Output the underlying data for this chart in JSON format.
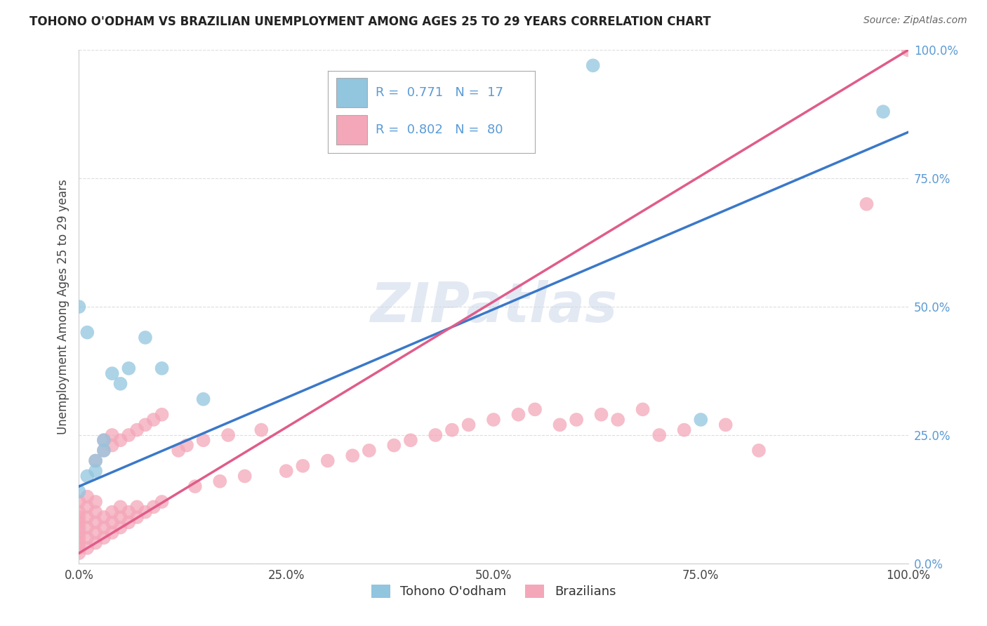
{
  "title": "TOHONO O'ODHAM VS BRAZILIAN UNEMPLOYMENT AMONG AGES 25 TO 29 YEARS CORRELATION CHART",
  "source": "Source: ZipAtlas.com",
  "ylabel": "Unemployment Among Ages 25 to 29 years",
  "watermark": "ZIPatlas",
  "legend_r1": "R =  0.771",
  "legend_n1": "N =  17",
  "legend_r2": "R =  0.802",
  "legend_n2": "N =  80",
  "blue_color": "#92c5de",
  "pink_color": "#f4a7b9",
  "blue_line_color": "#3a78c9",
  "pink_line_color": "#e05c8a",
  "blue_line_x0": 0.0,
  "blue_line_y0": 0.15,
  "blue_line_x1": 1.0,
  "blue_line_y1": 0.84,
  "pink_line_x0": 0.0,
  "pink_line_y0": 0.02,
  "pink_line_x1": 1.0,
  "pink_line_y1": 1.0,
  "blue_scatter": [
    [
      0.0,
      0.14
    ],
    [
      0.0,
      0.5
    ],
    [
      0.01,
      0.17
    ],
    [
      0.01,
      0.45
    ],
    [
      0.02,
      0.18
    ],
    [
      0.02,
      0.2
    ],
    [
      0.03,
      0.22
    ],
    [
      0.03,
      0.24
    ],
    [
      0.04,
      0.37
    ],
    [
      0.05,
      0.35
    ],
    [
      0.06,
      0.38
    ],
    [
      0.08,
      0.44
    ],
    [
      0.1,
      0.38
    ],
    [
      0.15,
      0.32
    ],
    [
      0.75,
      0.28
    ],
    [
      0.97,
      0.88
    ],
    [
      0.62,
      0.97
    ]
  ],
  "pink_scatter": [
    [
      0.0,
      0.02
    ],
    [
      0.0,
      0.03
    ],
    [
      0.0,
      0.04
    ],
    [
      0.0,
      0.05
    ],
    [
      0.0,
      0.06
    ],
    [
      0.0,
      0.07
    ],
    [
      0.0,
      0.08
    ],
    [
      0.0,
      0.09
    ],
    [
      0.0,
      0.1
    ],
    [
      0.0,
      0.12
    ],
    [
      0.01,
      0.03
    ],
    [
      0.01,
      0.05
    ],
    [
      0.01,
      0.07
    ],
    [
      0.01,
      0.09
    ],
    [
      0.01,
      0.11
    ],
    [
      0.01,
      0.13
    ],
    [
      0.02,
      0.04
    ],
    [
      0.02,
      0.06
    ],
    [
      0.02,
      0.08
    ],
    [
      0.02,
      0.1
    ],
    [
      0.02,
      0.12
    ],
    [
      0.02,
      0.2
    ],
    [
      0.03,
      0.05
    ],
    [
      0.03,
      0.07
    ],
    [
      0.03,
      0.09
    ],
    [
      0.03,
      0.22
    ],
    [
      0.03,
      0.24
    ],
    [
      0.04,
      0.06
    ],
    [
      0.04,
      0.08
    ],
    [
      0.04,
      0.1
    ],
    [
      0.04,
      0.23
    ],
    [
      0.04,
      0.25
    ],
    [
      0.05,
      0.07
    ],
    [
      0.05,
      0.09
    ],
    [
      0.05,
      0.11
    ],
    [
      0.05,
      0.24
    ],
    [
      0.06,
      0.08
    ],
    [
      0.06,
      0.1
    ],
    [
      0.06,
      0.25
    ],
    [
      0.07,
      0.09
    ],
    [
      0.07,
      0.11
    ],
    [
      0.07,
      0.26
    ],
    [
      0.08,
      0.1
    ],
    [
      0.08,
      0.27
    ],
    [
      0.09,
      0.11
    ],
    [
      0.09,
      0.28
    ],
    [
      0.1,
      0.12
    ],
    [
      0.1,
      0.29
    ],
    [
      0.12,
      0.22
    ],
    [
      0.13,
      0.23
    ],
    [
      0.14,
      0.15
    ],
    [
      0.15,
      0.24
    ],
    [
      0.17,
      0.16
    ],
    [
      0.18,
      0.25
    ],
    [
      0.2,
      0.17
    ],
    [
      0.22,
      0.26
    ],
    [
      0.25,
      0.18
    ],
    [
      0.27,
      0.19
    ],
    [
      0.3,
      0.2
    ],
    [
      0.33,
      0.21
    ],
    [
      0.35,
      0.22
    ],
    [
      0.38,
      0.23
    ],
    [
      0.4,
      0.24
    ],
    [
      0.43,
      0.25
    ],
    [
      0.45,
      0.26
    ],
    [
      0.47,
      0.27
    ],
    [
      0.5,
      0.28
    ],
    [
      0.53,
      0.29
    ],
    [
      0.55,
      0.3
    ],
    [
      0.58,
      0.27
    ],
    [
      0.6,
      0.28
    ],
    [
      0.63,
      0.29
    ],
    [
      0.65,
      0.28
    ],
    [
      0.68,
      0.3
    ],
    [
      0.7,
      0.25
    ],
    [
      0.73,
      0.26
    ],
    [
      0.78,
      0.27
    ],
    [
      0.82,
      0.22
    ],
    [
      0.95,
      0.7
    ],
    [
      1.0,
      1.0
    ]
  ],
  "xlim": [
    0,
    1
  ],
  "ylim": [
    0,
    1
  ],
  "xticks": [
    0,
    0.25,
    0.5,
    0.75,
    1.0
  ],
  "yticks": [
    0,
    0.25,
    0.5,
    0.75,
    1.0
  ],
  "xticklabels": [
    "0.0%",
    "25.0%",
    "50.0%",
    "75.0%",
    "100.0%"
  ],
  "yticklabels": [
    "0.0%",
    "25.0%",
    "50.0%",
    "75.0%",
    "100.0%"
  ],
  "tick_color": "#5b9bd5",
  "background_color": "#ffffff",
  "grid_color": "#dddddd"
}
